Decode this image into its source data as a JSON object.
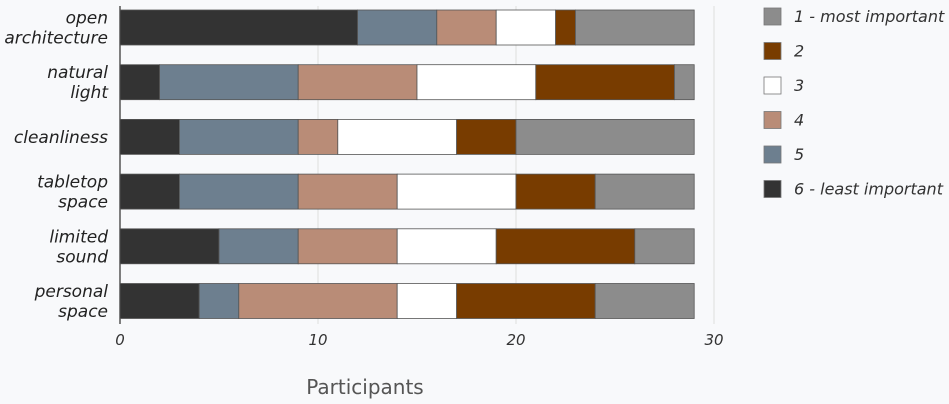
{
  "chart_data": {
    "type": "bar",
    "orientation": "horizontal",
    "stacked": true,
    "title": "",
    "xlabel": "Participants",
    "ylabel": "",
    "xlim": [
      0,
      30
    ],
    "xticks": [
      "0",
      "10",
      "20",
      "30"
    ],
    "grid": "vertical",
    "legend_position": "right",
    "categories": [
      [
        "open",
        "architecture"
      ],
      [
        "natural",
        "light"
      ],
      [
        "cleanliness"
      ],
      [
        "tabletop",
        "space"
      ],
      [
        "limited",
        "sound"
      ],
      [
        "personal",
        "space"
      ]
    ],
    "series": [
      {
        "name": "6 - least important",
        "color": "#333333",
        "values": [
          12,
          2,
          3,
          3,
          5,
          4
        ]
      },
      {
        "name": "5",
        "color": "#6d7f8f",
        "values": [
          4,
          7,
          6,
          6,
          4,
          2
        ]
      },
      {
        "name": "4",
        "color": "#b98c77",
        "values": [
          3,
          6,
          2,
          5,
          5,
          8
        ]
      },
      {
        "name": "3",
        "color": "#ffffff",
        "values": [
          3,
          6,
          6,
          6,
          5,
          3
        ]
      },
      {
        "name": "2",
        "color": "#783c00",
        "values": [
          1,
          7,
          3,
          4,
          7,
          7
        ]
      },
      {
        "name": "1 - most important",
        "color": "#8c8c8c",
        "values": [
          6,
          1,
          9,
          5,
          3,
          5
        ]
      }
    ],
    "legend_order": [
      "1 - most important",
      "2",
      "3",
      "4",
      "5",
      "6 - least important"
    ]
  }
}
